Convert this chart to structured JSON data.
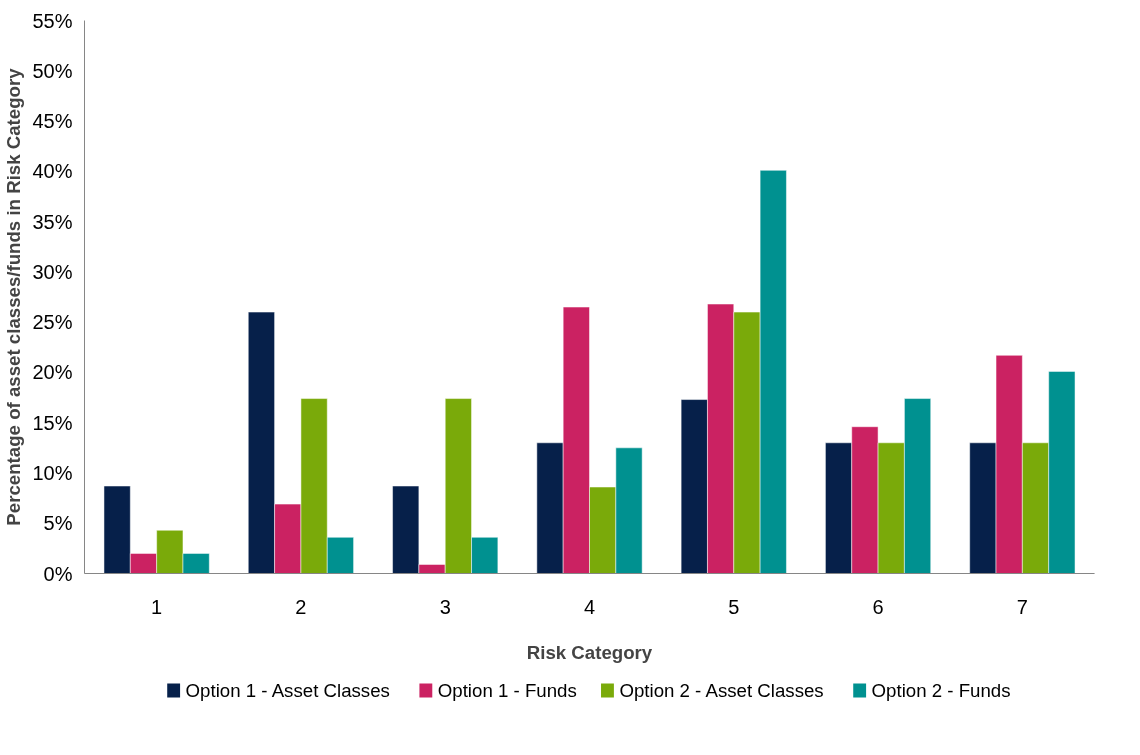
{
  "chart_data": {
    "type": "bar",
    "xlabel": "Risk Category",
    "ylabel": "Percentage of asset classes/funds in Risk Category",
    "categories": [
      "1",
      "2",
      "3",
      "4",
      "5",
      "6",
      "7"
    ],
    "series": [
      {
        "name": "Option 1 - Asset Classes",
        "color": "#06204a",
        "values": [
          8.7,
          26.0,
          8.7,
          13.0,
          17.3,
          13.0,
          13.0
        ]
      },
      {
        "name": "Option 1 - Funds",
        "color": "#cb2262",
        "values": [
          2.0,
          6.9,
          0.9,
          26.5,
          26.8,
          14.6,
          21.7
        ]
      },
      {
        "name": "Option 2 - Asset Classes",
        "color": "#7aaa0a",
        "values": [
          4.3,
          17.4,
          17.4,
          8.6,
          26.0,
          13.0,
          13.0
        ]
      },
      {
        "name": "Option 2 - Funds",
        "color": "#009190",
        "values": [
          2.0,
          3.6,
          3.6,
          12.5,
          40.1,
          17.4,
          20.1
        ]
      }
    ],
    "ylim": [
      0,
      55
    ],
    "yticks": [
      {
        "value": 0,
        "label": "0%"
      },
      {
        "value": 5,
        "label": "5%"
      },
      {
        "value": 10,
        "label": "10%"
      },
      {
        "value": 15,
        "label": "15%"
      },
      {
        "value": 20,
        "label": "20%"
      },
      {
        "value": 25,
        "label": "25%"
      },
      {
        "value": 30,
        "label": "30%"
      },
      {
        "value": 35,
        "label": "35%"
      },
      {
        "value": 40,
        "label": "40%"
      },
      {
        "value": 45,
        "label": "45%"
      },
      {
        "value": 50,
        "label": "50%"
      },
      {
        "value": 55,
        "label": "55%"
      }
    ],
    "grid": false,
    "legend": "bottom"
  }
}
